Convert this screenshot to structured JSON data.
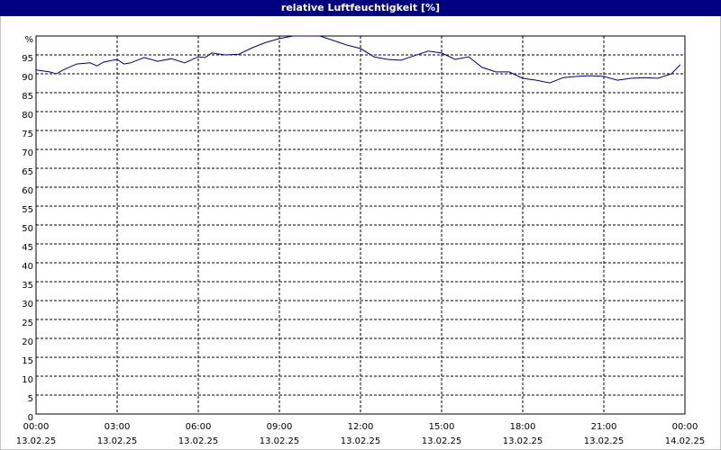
{
  "chart_data": {
    "type": "line",
    "title": "relative Luftfeuchtigkeit [%]",
    "x": [
      0,
      0.5,
      0.75,
      1,
      1.5,
      2,
      2.25,
      2.5,
      3,
      3.25,
      3.5,
      4,
      4.5,
      5,
      5.5,
      6,
      6.25,
      6.5,
      7,
      7.5,
      8,
      8.5,
      9,
      9.5,
      10,
      10.5,
      11,
      11.5,
      12,
      12.5,
      13,
      13.5,
      14,
      14.5,
      15,
      15.5,
      16,
      16.5,
      17,
      17.5,
      18,
      18.5,
      19,
      19.5,
      20,
      20.5,
      21,
      21.5,
      22,
      22.5,
      23,
      23.5,
      23.83
    ],
    "series": [
      {
        "color": "#000080",
        "values": [
          91,
          90.5,
          90,
          91,
          92.6,
          92.9,
          92.1,
          93.1,
          93.8,
          92.6,
          92.9,
          94.3,
          93.3,
          94,
          92.9,
          94.5,
          94.3,
          95.5,
          95,
          95.2,
          96.9,
          98.3,
          99.3,
          100,
          100,
          100,
          98.8,
          97.6,
          96.7,
          94.5,
          93.8,
          93.6,
          94.8,
          96,
          95.5,
          93.8,
          94.5,
          91.7,
          90.5,
          90.5,
          88.8,
          88.3,
          87.6,
          89,
          89.3,
          89.5,
          89.3,
          88.3,
          88.8,
          89,
          88.8,
          90,
          92.4
        ]
      }
    ],
    "xlim": [
      0,
      24
    ],
    "xticks": [
      {
        "value": 0,
        "label": [
          "00:00",
          "13.02.25"
        ]
      },
      {
        "value": 3,
        "label": [
          "03:00",
          "13.02.25"
        ]
      },
      {
        "value": 6,
        "label": [
          "06:00",
          "13.02.25"
        ]
      },
      {
        "value": 9,
        "label": [
          "09:00",
          "13.02.25"
        ]
      },
      {
        "value": 12,
        "label": [
          "12:00",
          "13.02.25"
        ]
      },
      {
        "value": 15,
        "label": [
          "15:00",
          "13.02.25"
        ]
      },
      {
        "value": 18,
        "label": [
          "18:00",
          "13.02.25"
        ]
      },
      {
        "value": 21,
        "label": [
          "21:00",
          "13.02.25"
        ]
      },
      {
        "value": 24,
        "label": [
          "00:00",
          "14.02.25"
        ]
      }
    ],
    "ylim": [
      0,
      100
    ],
    "yticks": [
      0,
      5,
      10,
      15,
      20,
      25,
      30,
      35,
      40,
      45,
      50,
      55,
      60,
      65,
      70,
      75,
      80,
      85,
      90,
      95,
      {
        "value": 100,
        "label": "%"
      }
    ],
    "grid": true
  }
}
